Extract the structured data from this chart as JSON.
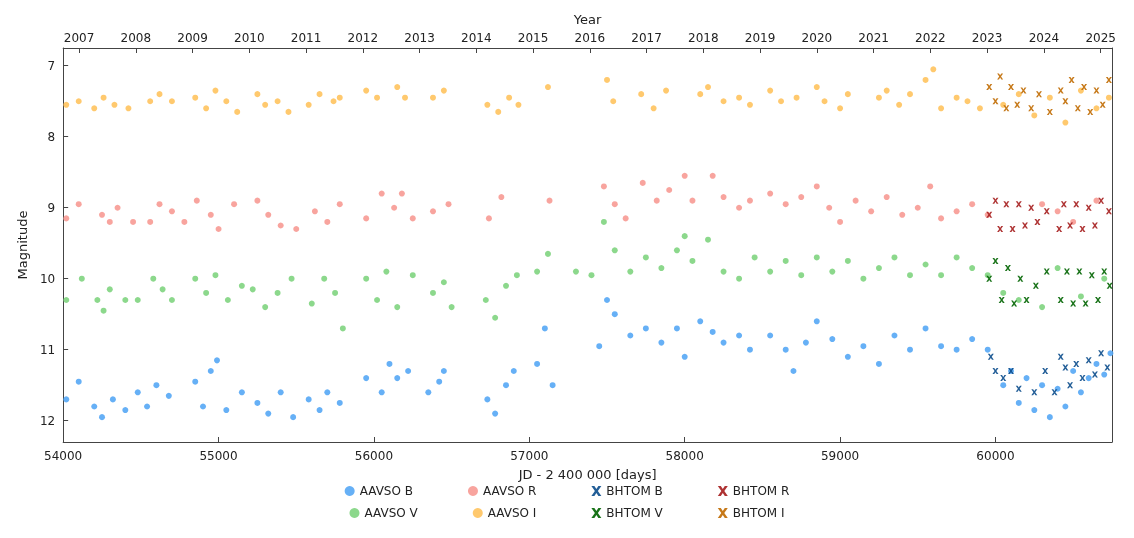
{
  "chart_data": {
    "type": "scatter",
    "xlabel": "JD - 2 400 000 [days]",
    "ylabel": "Magnitude",
    "x2label": "Year",
    "xlim": [
      54000,
      60750
    ],
    "xticks": [
      54000,
      55000,
      56000,
      57000,
      58000,
      59000,
      60000
    ],
    "x2lim": [
      2006.72,
      2025.2
    ],
    "x2ticks": [
      2007,
      2008,
      2009,
      2010,
      2011,
      2012,
      2013,
      2014,
      2015,
      2016,
      2017,
      2018,
      2019,
      2020,
      2021,
      2022,
      2023,
      2024,
      2025
    ],
    "ylim": [
      12.3,
      6.75
    ],
    "yticks": [
      7,
      8,
      9,
      10,
      11,
      12
    ],
    "grid": false,
    "legend": "bottom",
    "series": [
      {
        "name": "AAVSO B",
        "color": "#55a7f5",
        "marker": "circle",
        "x": [
          54020,
          54100,
          54200,
          54250,
          54320,
          54400,
          54480,
          54540,
          54600,
          54680,
          54850,
          54900,
          54950,
          54990,
          55050,
          55150,
          55250,
          55320,
          55400,
          55480,
          55580,
          55650,
          55700,
          55780,
          55950,
          56050,
          56100,
          56150,
          56220,
          56350,
          56420,
          56450,
          56730,
          56780,
          56850,
          56900,
          57050,
          57100,
          57150,
          57450,
          57500,
          57550,
          57650,
          57750,
          57850,
          57950,
          58000,
          58100,
          58180,
          58250,
          58350,
          58420,
          58550,
          58650,
          58700,
          58780,
          58850,
          58950,
          59050,
          59150,
          59250,
          59350,
          59450,
          59550,
          59650,
          59750,
          59850,
          59950,
          60050,
          60100,
          60150,
          60200,
          60250,
          60300,
          60350,
          60400,
          60450,
          60500,
          60550,
          60600,
          60650,
          60700,
          60740
        ],
        "values": [
          11.7,
          11.45,
          11.8,
          11.95,
          11.7,
          11.85,
          11.6,
          11.8,
          11.5,
          11.65,
          11.45,
          11.8,
          11.3,
          11.15,
          11.85,
          11.6,
          11.75,
          11.9,
          11.6,
          11.95,
          11.7,
          11.85,
          11.6,
          11.75,
          11.4,
          11.6,
          11.2,
          11.4,
          11.3,
          11.6,
          11.45,
          11.3,
          11.7,
          11.9,
          11.5,
          11.3,
          11.2,
          10.7,
          11.5,
          10.95,
          10.3,
          10.5,
          10.8,
          10.7,
          10.9,
          10.7,
          11.1,
          10.6,
          10.75,
          10.9,
          10.8,
          11.0,
          10.8,
          11.0,
          11.3,
          10.9,
          10.6,
          10.85,
          11.1,
          10.95,
          11.2,
          10.8,
          11.0,
          10.7,
          10.95,
          11.0,
          10.85,
          11.0,
          11.5,
          11.3,
          11.75,
          11.4,
          11.85,
          11.5,
          11.95,
          11.55,
          11.8,
          11.3,
          11.6,
          11.4,
          11.2,
          11.35,
          11.05
        ]
      },
      {
        "name": "AAVSO V",
        "color": "#7fd47f",
        "marker": "circle",
        "x": [
          54020,
          54120,
          54220,
          54260,
          54300,
          54400,
          54480,
          54580,
          54640,
          54700,
          54850,
          54920,
          54980,
          55060,
          55150,
          55220,
          55300,
          55380,
          55470,
          55600,
          55680,
          55750,
          55800,
          55950,
          56020,
          56080,
          56150,
          56250,
          56380,
          56450,
          56500,
          56720,
          56780,
          56850,
          56920,
          57050,
          57120,
          57300,
          57400,
          57480,
          57550,
          57650,
          57750,
          57850,
          57950,
          58000,
          58050,
          58150,
          58250,
          58350,
          58450,
          58550,
          58650,
          58750,
          58850,
          58950,
          59050,
          59150,
          59250,
          59350,
          59450,
          59550,
          59650,
          59750,
          59850,
          59950,
          60050,
          60150,
          60300,
          60400,
          60550,
          60700
        ],
        "values": [
          10.3,
          10.0,
          10.3,
          10.45,
          10.15,
          10.3,
          10.3,
          10.0,
          10.15,
          10.3,
          10.0,
          10.2,
          9.95,
          10.3,
          10.1,
          10.15,
          10.4,
          10.2,
          10.0,
          10.35,
          10.0,
          10.2,
          10.7,
          10.0,
          10.3,
          9.9,
          10.4,
          9.95,
          10.2,
          10.05,
          10.4,
          10.3,
          10.55,
          10.1,
          9.95,
          9.9,
          9.65,
          9.9,
          9.95,
          9.2,
          9.6,
          9.9,
          9.7,
          9.85,
          9.6,
          9.4,
          9.75,
          9.45,
          9.9,
          10.0,
          9.7,
          9.9,
          9.75,
          9.95,
          9.7,
          9.9,
          9.75,
          10.0,
          9.85,
          9.7,
          9.95,
          9.8,
          9.95,
          9.7,
          9.85,
          9.95,
          10.2,
          10.3,
          10.4,
          9.85,
          10.25,
          10.0
        ]
      },
      {
        "name": "AAVSO R",
        "color": "#f79a94",
        "marker": "circle",
        "x": [
          54020,
          54100,
          54250,
          54300,
          54350,
          54450,
          54560,
          54620,
          54700,
          54780,
          54860,
          54950,
          55000,
          55100,
          55250,
          55320,
          55400,
          55500,
          55620,
          55700,
          55780,
          55950,
          56050,
          56130,
          56180,
          56250,
          56380,
          56480,
          56740,
          56820,
          57130,
          57480,
          57550,
          57620,
          57730,
          57820,
          57900,
          58000,
          58050,
          58180,
          58250,
          58350,
          58420,
          58550,
          58650,
          58750,
          58850,
          58930,
          59000,
          59100,
          59200,
          59300,
          59400,
          59500,
          59580,
          59650,
          59750,
          59850,
          59950,
          60300,
          60400,
          60500,
          60650
        ],
        "values": [
          9.15,
          8.95,
          9.1,
          9.2,
          9.0,
          9.2,
          9.2,
          8.95,
          9.05,
          9.2,
          8.9,
          9.1,
          9.3,
          8.95,
          8.9,
          9.1,
          9.25,
          9.3,
          9.05,
          9.2,
          8.95,
          9.15,
          8.8,
          9.0,
          8.8,
          9.15,
          9.05,
          8.95,
          9.15,
          8.85,
          8.9,
          8.7,
          8.95,
          9.15,
          8.65,
          8.9,
          8.75,
          8.55,
          8.9,
          8.55,
          8.85,
          9.0,
          8.9,
          8.8,
          8.95,
          8.85,
          8.7,
          9.0,
          9.2,
          8.9,
          9.05,
          8.85,
          9.1,
          9.0,
          8.7,
          9.15,
          9.05,
          8.95,
          9.1,
          8.95,
          9.05,
          9.2,
          8.9
        ]
      },
      {
        "name": "AAVSO I",
        "color": "#ffc35e",
        "marker": "circle",
        "x": [
          54020,
          54100,
          54200,
          54260,
          54330,
          54420,
          54560,
          54620,
          54700,
          54850,
          54920,
          54980,
          55050,
          55120,
          55250,
          55300,
          55380,
          55450,
          55580,
          55650,
          55740,
          55780,
          55950,
          56020,
          56150,
          56200,
          56380,
          56450,
          56730,
          56800,
          56870,
          56930,
          57120,
          57500,
          57540,
          57720,
          57800,
          57880,
          58100,
          58150,
          58250,
          58350,
          58420,
          58550,
          58620,
          58720,
          58850,
          58900,
          59000,
          59050,
          59250,
          59300,
          59380,
          59450,
          59550,
          59600,
          59650,
          59750,
          59820,
          59900,
          60050,
          60150,
          60250,
          60350,
          60450,
          60550,
          60650,
          60730
        ],
        "values": [
          7.55,
          7.5,
          7.6,
          7.45,
          7.55,
          7.6,
          7.5,
          7.4,
          7.5,
          7.45,
          7.6,
          7.35,
          7.5,
          7.65,
          7.4,
          7.55,
          7.5,
          7.65,
          7.55,
          7.4,
          7.5,
          7.45,
          7.35,
          7.45,
          7.3,
          7.45,
          7.45,
          7.35,
          7.55,
          7.65,
          7.45,
          7.55,
          7.3,
          7.2,
          7.5,
          7.4,
          7.6,
          7.35,
          7.4,
          7.3,
          7.5,
          7.45,
          7.55,
          7.35,
          7.5,
          7.45,
          7.3,
          7.5,
          7.6,
          7.4,
          7.45,
          7.35,
          7.55,
          7.4,
          7.2,
          7.05,
          7.6,
          7.45,
          7.5,
          7.6,
          7.55,
          7.4,
          7.7,
          7.45,
          7.8,
          7.35,
          7.6,
          7.45
        ]
      },
      {
        "name": "BHTOM B",
        "color": "#0b4c8c",
        "marker": "cross",
        "x": [
          59970,
          60000,
          60050,
          60100,
          60150,
          60250,
          60320,
          60380,
          60420,
          60450,
          60480,
          60520,
          60560,
          60600,
          60640,
          60680,
          60720
        ],
        "values": [
          11.1,
          11.3,
          11.4,
          11.3,
          11.55,
          11.6,
          11.3,
          11.6,
          11.1,
          11.25,
          11.5,
          11.2,
          11.4,
          11.15,
          11.35,
          11.05,
          11.25
        ]
      },
      {
        "name": "BHTOM V",
        "color": "#006400",
        "marker": "cross",
        "x": [
          59960,
          60000,
          60040,
          60080,
          60120,
          60160,
          60200,
          60260,
          60330,
          60420,
          60460,
          60500,
          60540,
          60580,
          60620,
          60660,
          60700,
          60735
        ],
        "values": [
          10.0,
          9.75,
          10.3,
          9.85,
          10.35,
          10.0,
          10.3,
          10.1,
          9.9,
          10.3,
          9.9,
          10.35,
          9.9,
          10.35,
          9.95,
          10.3,
          9.9,
          10.1
        ]
      },
      {
        "name": "BHTOM R",
        "color": "#a51d1d",
        "marker": "cross",
        "x": [
          59960,
          60000,
          60030,
          60070,
          60110,
          60150,
          60190,
          60230,
          60270,
          60330,
          60410,
          60440,
          60480,
          60520,
          60560,
          60600,
          60640,
          60680,
          60730
        ],
        "values": [
          9.1,
          8.9,
          9.3,
          8.95,
          9.3,
          8.95,
          9.25,
          9.0,
          9.2,
          9.05,
          9.3,
          8.95,
          9.25,
          8.95,
          9.3,
          9.0,
          9.25,
          8.9,
          9.05
        ]
      },
      {
        "name": "BHTOM I",
        "color": "#c06a00",
        "marker": "cross",
        "x": [
          59960,
          60000,
          60030,
          60070,
          60100,
          60140,
          60180,
          60230,
          60280,
          60350,
          60420,
          60450,
          60490,
          60530,
          60570,
          60610,
          60650,
          60690,
          60730
        ],
        "values": [
          7.3,
          7.5,
          7.15,
          7.6,
          7.3,
          7.55,
          7.35,
          7.6,
          7.4,
          7.65,
          7.35,
          7.5,
          7.2,
          7.6,
          7.3,
          7.65,
          7.35,
          7.55,
          7.2
        ]
      }
    ]
  }
}
